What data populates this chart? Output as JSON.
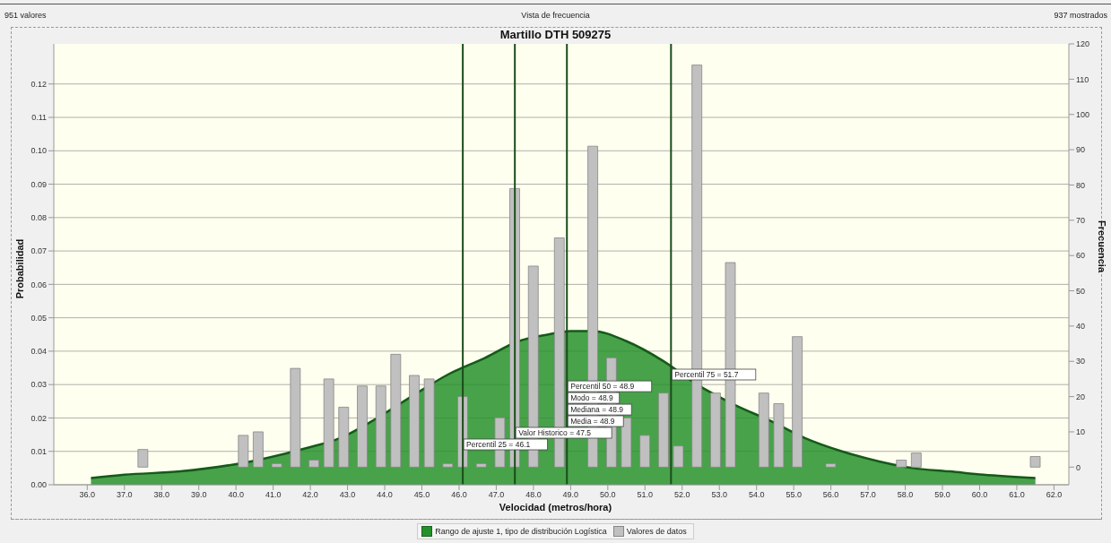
{
  "chart_data": {
    "type": "bar",
    "title": "Martillo DTH 509275",
    "xlabel": "Velocidad (metros/hora)",
    "ylabel": "Probabilidad",
    "y2label": "Frecuencia",
    "annotations": [
      "951 valores",
      "Vista de frecuencia",
      "937 mostrados",
      {
        "text": "Percentil 50 = 48.9\nModo = 48.9\nMediana = 48.9",
        "x": 48.9,
        "y": 0.026
      }
    ],
    "xlim": [
      35.1,
      62.4
    ],
    "xticks": [
      {
        "value": 36,
        "label": "36.0"
      },
      {
        "value": 37,
        "label": "37.0"
      },
      {
        "value": 38,
        "label": "38.0"
      },
      {
        "value": 39,
        "label": "39.0"
      },
      {
        "value": 40,
        "label": "40.0"
      },
      {
        "value": 41,
        "label": "41.0"
      },
      {
        "value": 42,
        "label": "42.0"
      },
      {
        "value": 43,
        "label": "43.0"
      },
      {
        "value": 44,
        "label": "44.0"
      },
      {
        "value": 45,
        "label": "45.0"
      },
      {
        "value": 46,
        "label": "46.0"
      },
      {
        "value": 47,
        "label": "47.0"
      },
      {
        "value": 48,
        "label": "48.0"
      },
      {
        "value": 49,
        "label": "49.0"
      },
      {
        "value": 50,
        "label": "50.0"
      },
      {
        "value": 51,
        "label": "51.0"
      },
      {
        "value": 52,
        "label": "52.0"
      },
      {
        "value": 53,
        "label": "53.0"
      },
      {
        "value": 54,
        "label": "54.0"
      },
      {
        "value": 55,
        "label": "55.0"
      },
      {
        "value": 56,
        "label": "56.0"
      },
      {
        "value": 57,
        "label": "57.0"
      },
      {
        "value": 58,
        "label": "58.0"
      },
      {
        "value": 59,
        "label": "59.0"
      },
      {
        "value": 60,
        "label": "60.0"
      },
      {
        "value": 61,
        "label": "61.0"
      },
      {
        "value": 62,
        "label": "62.0"
      }
    ],
    "ylim": [
      0,
      0.132
    ],
    "yticks": [
      {
        "value": 0,
        "label": "0.00"
      },
      0.01,
      0.02,
      0.03,
      0.04,
      0.05,
      0.06,
      0.07,
      0.08,
      0.09,
      {
        "value": 0.1,
        "label": "0.10"
      },
      0.11,
      0.12
    ],
    "y2lim": [
      -5,
      120
    ],
    "y2ticks": [
      0,
      10,
      20,
      30,
      40,
      50,
      60,
      70,
      80,
      90,
      100,
      110,
      120
    ],
    "grid": "y",
    "legend": "bottom",
    "series": [
      {
        "name": "Rango de ajuste 1, tipo de distribución Logística",
        "type": "area",
        "color": "#24902a",
        "x": [
          36.1,
          37.0,
          38.5,
          40.4,
          41.9,
          42.8,
          43.8,
          44.8,
          45.7,
          46.7,
          47.6,
          48.4,
          49.0,
          49.6,
          50.5,
          51.5,
          52.4,
          53.4,
          54.4,
          55.3,
          56.3,
          57.3,
          58.2,
          59.2,
          60.1,
          61.5
        ],
        "values": [
          0.002,
          0.003,
          0.004,
          0.007,
          0.011,
          0.014,
          0.02,
          0.027,
          0.033,
          0.038,
          0.043,
          0.045,
          0.046,
          0.046,
          0.043,
          0.037,
          0.03,
          0.024,
          0.019,
          0.014,
          0.01,
          0.007,
          0.005,
          0.004,
          0.003,
          0.002
        ]
      },
      {
        "name": "Valores de datos",
        "axis": "y2",
        "color": "#c0c0c0",
        "x": [
          37.5,
          40.2,
          40.6,
          41.1,
          41.6,
          42.1,
          42.5,
          42.9,
          43.4,
          43.9,
          44.3,
          44.8,
          45.2,
          45.7,
          46.1,
          46.6,
          47.1,
          47.5,
          48.0,
          48.7,
          49.6,
          50.1,
          50.5,
          51.0,
          51.5,
          51.9,
          52.4,
          52.9,
          53.3,
          54.2,
          54.6,
          55.1,
          56.0,
          57.9,
          58.3,
          61.5
        ],
        "values": [
          5,
          9,
          10,
          1,
          28,
          2,
          25,
          17,
          23,
          23,
          32,
          26,
          25,
          1,
          20,
          1,
          14,
          79,
          57,
          65,
          91,
          31,
          14,
          9,
          21,
          6,
          114,
          21,
          58,
          21,
          18,
          37,
          1,
          2,
          4,
          3
        ]
      }
    ],
    "ref_lines": [
      {
        "axis": "x",
        "value": 46.1,
        "label": "Percentil 25 = 46.1",
        "color": "#1a4d1a"
      },
      {
        "axis": "x",
        "value": 47.5,
        "label": "Valor Historico = 47.5",
        "color": "#1a4d1a"
      },
      {
        "axis": "x",
        "value": 48.9,
        "label": "Media = 48.9",
        "color": "#1a4d1a"
      },
      {
        "axis": "x",
        "value": 51.7,
        "label": "Percentil 75 = 51.7",
        "color": "#1a4d1a"
      }
    ]
  }
}
